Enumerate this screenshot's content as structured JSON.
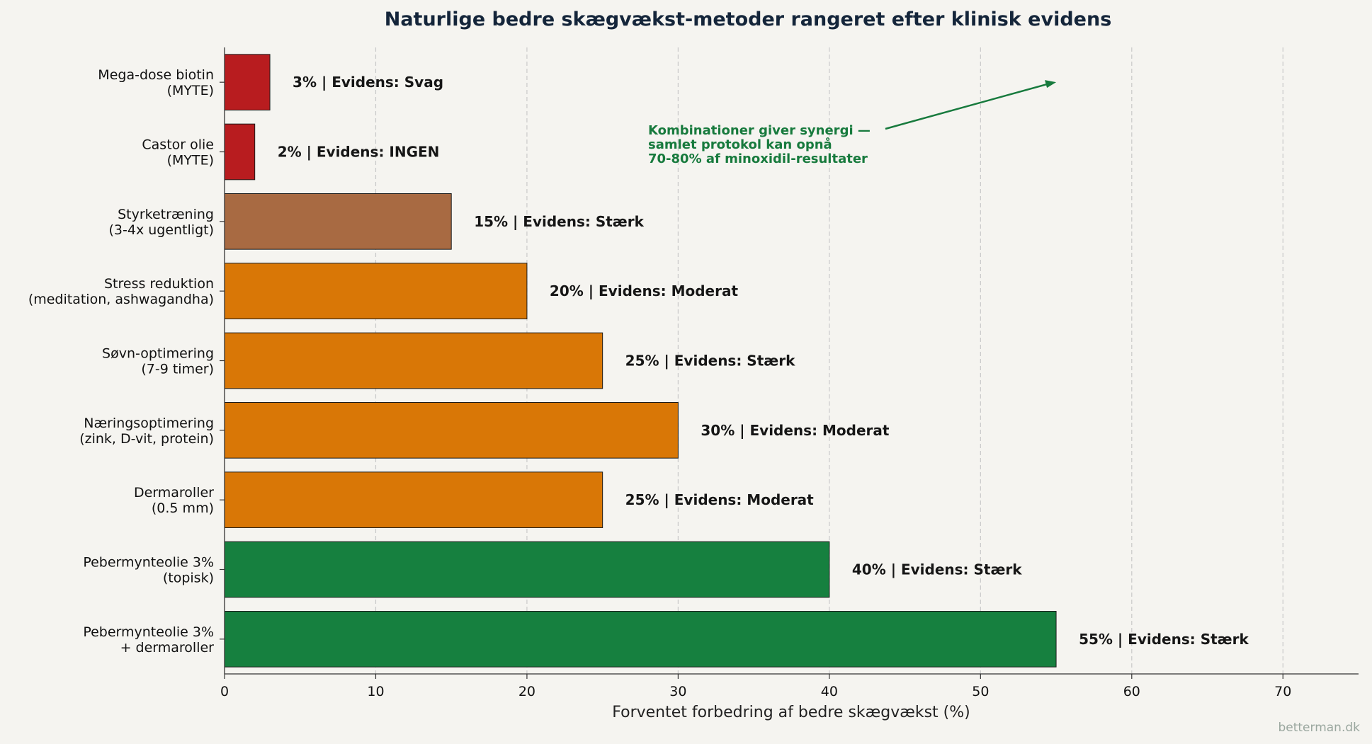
{
  "chart_data": {
    "type": "bar",
    "orientation": "horizontal",
    "title": "Naturlige bedre skægvækst-metoder rangeret efter klinisk evidens",
    "xlabel": "Forventet forbedring af bedre skægvækst (%)",
    "xlim": [
      0,
      75
    ],
    "xticks": [
      "0",
      "10",
      "20",
      "30",
      "40",
      "50",
      "60",
      "70"
    ],
    "grid": "x-dashed",
    "bars": [
      {
        "label": [
          "Mega-dose biotin",
          "(MYTE)"
        ],
        "value": 3,
        "evidence": "Svag",
        "data_label": "3%  |  Evidens: Svag",
        "color": "#b81c1f"
      },
      {
        "label": [
          "Castor olie",
          "(MYTE)"
        ],
        "value": 2,
        "evidence": "INGEN",
        "data_label": "2%  |  Evidens: INGEN",
        "color": "#b81c1f"
      },
      {
        "label": [
          "Styrketræning",
          "(3-4x ugentligt)"
        ],
        "value": 15,
        "evidence": "Stærk",
        "data_label": "15%  |  Evidens: Stærk",
        "color": "#a86a42"
      },
      {
        "label": [
          "Stress reduktion",
          "(meditation, ashwagandha)"
        ],
        "value": 20,
        "evidence": "Moderat",
        "data_label": "20%  |  Evidens: Moderat",
        "color": "#d97706"
      },
      {
        "label": [
          "Søvn-optimering",
          "(7-9 timer)"
        ],
        "value": 25,
        "evidence": "Stærk",
        "data_label": "25%  |  Evidens: Stærk",
        "color": "#d97706"
      },
      {
        "label": [
          "Næringsoptimering",
          "(zink, D-vit, protein)"
        ],
        "value": 30,
        "evidence": "Moderat",
        "data_label": "30%  |  Evidens: Moderat",
        "color": "#d97706"
      },
      {
        "label": [
          "Dermaroller",
          "(0.5 mm)"
        ],
        "value": 25,
        "evidence": "Moderat",
        "data_label": "25%  |  Evidens: Moderat",
        "color": "#d97706"
      },
      {
        "label": [
          "Pebermynteolie 3%",
          "(topisk)"
        ],
        "value": 40,
        "evidence": "Stærk",
        "data_label": "40%  |  Evidens: Stærk",
        "color": "#16803f"
      },
      {
        "label": [
          "Pebermynteolie 3%",
          "+ dermaroller"
        ],
        "value": 55,
        "evidence": "Stærk",
        "data_label": "55%  |  Evidens: Stærk",
        "color": "#16803f"
      }
    ],
    "annotation": {
      "lines": [
        "Kombinationer giver synergi —",
        "samlet protokol kan opnå",
        "70-80% af minoxidil-resultater"
      ],
      "color": "#177a3d"
    },
    "footer": "betterman.dk"
  }
}
